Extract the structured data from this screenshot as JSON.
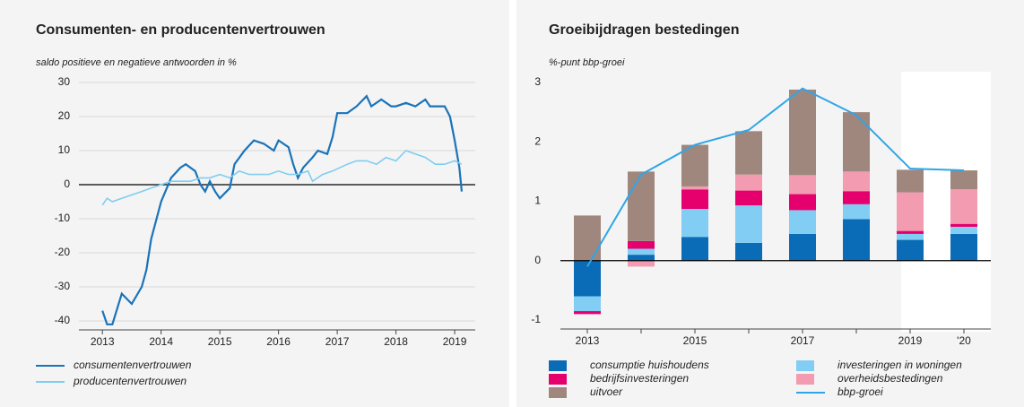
{
  "chart_data": [
    {
      "type": "line",
      "title": "Consumenten- en producentenvertrouwen",
      "subtitle": "saldo positieve en negatieve antwoorden in %",
      "xlim": [
        2012.6,
        2019.35
      ],
      "xticks": [
        2013,
        2014,
        2015,
        2016,
        2017,
        2018,
        2019
      ],
      "ylim": [
        -40,
        30
      ],
      "yticks": [
        -40,
        -30,
        -20,
        -10,
        0,
        10,
        20,
        30
      ],
      "grid": true,
      "series": [
        {
          "name": "consumentenvertrouwen",
          "color": "#1a73b9",
          "x": [
            2013.0,
            2013.08,
            2013.17,
            2013.33,
            2013.5,
            2013.67,
            2013.75,
            2013.83,
            2014.0,
            2014.17,
            2014.33,
            2014.42,
            2014.58,
            2014.67,
            2014.75,
            2014.83,
            2014.92,
            2015.0,
            2015.17,
            2015.25,
            2015.42,
            2015.58,
            2015.75,
            2015.92,
            2016.0,
            2016.17,
            2016.25,
            2016.33,
            2016.42,
            2016.58,
            2016.67,
            2016.83,
            2016.92,
            2017.0,
            2017.17,
            2017.33,
            2017.5,
            2017.58,
            2017.75,
            2017.92,
            2018.0,
            2018.17,
            2018.33,
            2018.5,
            2018.58,
            2018.83,
            2018.92,
            2019.0,
            2019.08,
            2019.12
          ],
          "values": [
            -37,
            -41,
            -41,
            -32,
            -35,
            -30,
            -25,
            -16,
            -5,
            2,
            5,
            6,
            4,
            0,
            -2,
            1,
            -2,
            -4,
            -1,
            6,
            10,
            13,
            12,
            10,
            13,
            11,
            6,
            2,
            5,
            8,
            10,
            9,
            14,
            21,
            21,
            23,
            26,
            23,
            25,
            23,
            23,
            24,
            23,
            25,
            23,
            23,
            20,
            13,
            5,
            -2
          ]
        },
        {
          "name": "producentenvertrouwen",
          "color": "#7fcdf2",
          "x": [
            2013.0,
            2013.08,
            2013.17,
            2013.33,
            2013.5,
            2013.67,
            2013.83,
            2014.0,
            2014.17,
            2014.33,
            2014.5,
            2014.67,
            2014.83,
            2015.0,
            2015.17,
            2015.33,
            2015.5,
            2015.67,
            2015.83,
            2016.0,
            2016.17,
            2016.33,
            2016.5,
            2016.58,
            2016.75,
            2016.92,
            2017.17,
            2017.33,
            2017.5,
            2017.67,
            2017.83,
            2018.0,
            2018.17,
            2018.33,
            2018.5,
            2018.67,
            2018.83,
            2019.0,
            2019.12
          ],
          "values": [
            -6,
            -4,
            -5,
            -4,
            -3,
            -2,
            -1,
            0,
            1,
            1,
            1,
            2,
            2,
            3,
            2,
            4,
            3,
            3,
            3,
            4,
            3,
            3,
            4,
            1,
            3,
            4,
            6,
            7,
            7,
            6,
            8,
            7,
            10,
            9,
            8,
            6,
            6,
            7,
            6
          ]
        }
      ]
    },
    {
      "type": "stacked_bar_line",
      "title": "Groeibijdragen bestedingen",
      "subtitle": "%-punt bbp-groei",
      "categories": [
        "2013",
        null,
        "2015",
        null,
        "2017",
        null,
        "2019",
        "'20"
      ],
      "ylim": [
        -1,
        3
      ],
      "yticks": [
        -1,
        0,
        1,
        2,
        3
      ],
      "series": [
        {
          "name": "consumptie huishoudens",
          "color": "#0a6cb7",
          "values": [
            -0.6,
            0.1,
            0.4,
            0.3,
            0.45,
            0.7,
            0.35,
            0.45
          ]
        },
        {
          "name": "investeringen in woningen",
          "color": "#82cdf3",
          "values": [
            -0.25,
            0.1,
            0.47,
            0.63,
            0.4,
            0.25,
            0.1,
            0.12
          ]
        },
        {
          "name": "bedrijfsinvesteringen",
          "color": "#e5006e",
          "values": [
            -0.05,
            0.13,
            0.33,
            0.25,
            0.27,
            0.22,
            0.05,
            0.05
          ]
        },
        {
          "name": "overheidsbestedingen",
          "color": "#f39bb1",
          "values": [
            0,
            -0.1,
            0.05,
            0.27,
            0.32,
            0.33,
            0.65,
            0.58
          ]
        },
        {
          "name": "uitvoer",
          "color": "#9f877e",
          "values": [
            0.76,
            1.17,
            0.7,
            0.73,
            1.44,
            1.0,
            0.38,
            0.32
          ]
        },
        {
          "name": "bbp-groei",
          "color": "#2ea6e8",
          "type": "line",
          "values": [
            -0.1,
            1.45,
            1.95,
            2.2,
            2.9,
            2.45,
            1.55,
            1.52
          ]
        }
      ]
    }
  ]
}
